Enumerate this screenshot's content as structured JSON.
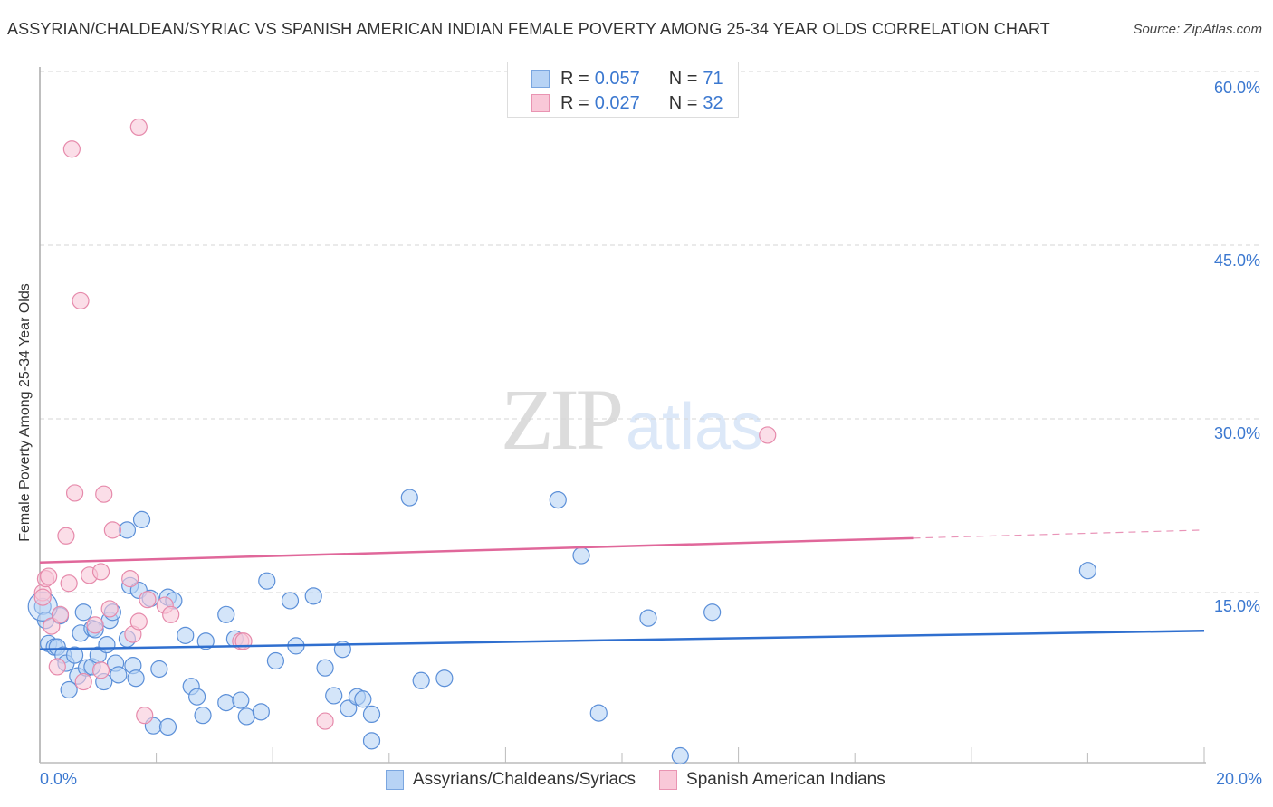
{
  "header": {
    "title": "ASSYRIAN/CHALDEAN/SYRIAC VS SPANISH AMERICAN INDIAN FEMALE POVERTY AMONG 25-34 YEAR OLDS CORRELATION CHART",
    "source": "Source: ZipAtlas.com"
  },
  "watermark": {
    "zip": "ZIP",
    "atlas": "atlas"
  },
  "legend": {
    "rows": [
      {
        "r_label": "R = ",
        "r_value": "0.057",
        "n_label": "N = ",
        "n_value": "71",
        "color": "#b7d3f5",
        "border": "#7aa6e0"
      },
      {
        "r_label": "R = ",
        "r_value": "0.027",
        "n_label": "N = ",
        "n_value": "32",
        "color": "#f9c8d8",
        "border": "#e994b2"
      }
    ]
  },
  "axes": {
    "ylabel": "Female Poverty Among 25-34 Year Olds",
    "y_ticks": [
      "60.0%",
      "45.0%",
      "30.0%",
      "15.0%"
    ],
    "x_min_label": "0.0%",
    "x_max_label": "20.0%"
  },
  "bottom_legend": {
    "series_a": "Assyrians/Chaldeans/Syriacs",
    "series_b": "Spanish American Indians"
  },
  "colors": {
    "blue_fill": "#b7d3f5",
    "blue_stroke": "#5b8fd8",
    "blue_line": "#2f6fcf",
    "pink_fill": "#f9c8d8",
    "pink_stroke": "#e68aab",
    "pink_line": "#e0679a",
    "tick_text": "#3b78d0"
  },
  "chart_data": {
    "type": "scatter",
    "title": "ASSYRIAN/CHALDEAN/SYRIAC VS SPANISH AMERICAN INDIAN FEMALE POVERTY AMONG 25-34 YEAR OLDS CORRELATION CHART",
    "xlabel": "",
    "ylabel": "Female Poverty Among 25-34 Year Olds",
    "xlim": [
      0,
      20
    ],
    "ylim": [
      0,
      63
    ],
    "x_ticks": [
      "0.0%",
      "20.0%"
    ],
    "y_ticks": [
      15,
      30,
      45,
      60
    ],
    "grid": "horizontal dashed",
    "legend_position": "top-center",
    "series": [
      {
        "name": "Assyrians/Chaldeans/Syriacs",
        "R": 0.057,
        "N": 71,
        "trend": {
          "x": [
            0,
            20
          ],
          "y": [
            10.1,
            11.7
          ]
        },
        "points": [
          [
            0.05,
            13.8
          ],
          [
            0.1,
            12.6
          ],
          [
            0.15,
            10.6
          ],
          [
            0.25,
            10.3
          ],
          [
            0.3,
            10.3
          ],
          [
            0.4,
            9.6
          ],
          [
            0.45,
            8.9
          ],
          [
            0.5,
            6.6
          ],
          [
            0.6,
            9.6
          ],
          [
            0.65,
            7.8
          ],
          [
            0.7,
            11.5
          ],
          [
            0.75,
            13.3
          ],
          [
            0.8,
            8.5
          ],
          [
            0.9,
            8.6
          ],
          [
            0.9,
            11.9
          ],
          [
            0.95,
            11.8
          ],
          [
            1.0,
            9.6
          ],
          [
            1.1,
            7.3
          ],
          [
            1.15,
            10.5
          ],
          [
            1.2,
            12.6
          ],
          [
            1.25,
            13.3
          ],
          [
            1.3,
            8.9
          ],
          [
            1.35,
            7.9
          ],
          [
            1.5,
            11.0
          ],
          [
            1.5,
            20.4
          ],
          [
            1.55,
            15.6
          ],
          [
            1.6,
            8.7
          ],
          [
            1.65,
            7.6
          ],
          [
            1.7,
            15.2
          ],
          [
            1.75,
            21.3
          ],
          [
            1.9,
            14.5
          ],
          [
            1.95,
            3.5
          ],
          [
            2.05,
            8.4
          ],
          [
            2.2,
            3.4
          ],
          [
            2.2,
            14.6
          ],
          [
            2.3,
            14.3
          ],
          [
            2.5,
            11.3
          ],
          [
            2.6,
            6.9
          ],
          [
            2.7,
            6.0
          ],
          [
            2.8,
            4.4
          ],
          [
            2.85,
            10.8
          ],
          [
            3.2,
            5.5
          ],
          [
            3.2,
            13.1
          ],
          [
            3.35,
            11.0
          ],
          [
            3.45,
            5.7
          ],
          [
            3.55,
            4.3
          ],
          [
            3.8,
            4.7
          ],
          [
            3.9,
            16.0
          ],
          [
            4.05,
            9.1
          ],
          [
            4.3,
            14.3
          ],
          [
            4.4,
            10.4
          ],
          [
            4.7,
            14.7
          ],
          [
            4.9,
            8.5
          ],
          [
            5.05,
            6.1
          ],
          [
            5.2,
            10.1
          ],
          [
            5.3,
            5.0
          ],
          [
            5.45,
            6.0
          ],
          [
            5.55,
            5.8
          ],
          [
            5.7,
            4.5
          ],
          [
            5.7,
            2.2
          ],
          [
            6.35,
            23.2
          ],
          [
            6.55,
            7.4
          ],
          [
            6.95,
            7.6
          ],
          [
            8.9,
            23.0
          ],
          [
            9.3,
            18.2
          ],
          [
            9.6,
            4.6
          ],
          [
            10.45,
            12.8
          ],
          [
            11.0,
            0.9
          ],
          [
            11.55,
            13.3
          ],
          [
            18.0,
            16.9
          ],
          [
            0.35,
            13.0
          ]
        ]
      },
      {
        "name": "Spanish American Indians",
        "R": 0.027,
        "N": 32,
        "trend": {
          "x": [
            0,
            15,
            20
          ],
          "y": [
            17.6,
            19.7,
            20.4
          ],
          "solid_until_x": 15
        },
        "points": [
          [
            0.05,
            15.0
          ],
          [
            0.05,
            14.6
          ],
          [
            0.1,
            16.2
          ],
          [
            0.15,
            16.4
          ],
          [
            0.2,
            12.1
          ],
          [
            0.35,
            13.1
          ],
          [
            0.45,
            19.9
          ],
          [
            0.5,
            15.8
          ],
          [
            0.55,
            53.3
          ],
          [
            0.6,
            23.6
          ],
          [
            0.7,
            40.2
          ],
          [
            0.75,
            7.3
          ],
          [
            0.85,
            16.5
          ],
          [
            0.95,
            12.2
          ],
          [
            1.05,
            16.8
          ],
          [
            1.05,
            8.3
          ],
          [
            1.1,
            23.5
          ],
          [
            1.2,
            13.6
          ],
          [
            1.25,
            20.4
          ],
          [
            1.55,
            16.2
          ],
          [
            1.6,
            11.4
          ],
          [
            1.7,
            55.2
          ],
          [
            1.7,
            12.5
          ],
          [
            1.8,
            4.4
          ],
          [
            1.85,
            14.4
          ],
          [
            2.15,
            13.9
          ],
          [
            2.25,
            13.1
          ],
          [
            3.45,
            10.8
          ],
          [
            3.5,
            10.8
          ],
          [
            4.9,
            3.9
          ],
          [
            12.5,
            28.6
          ],
          [
            0.3,
            8.6
          ]
        ]
      }
    ]
  }
}
